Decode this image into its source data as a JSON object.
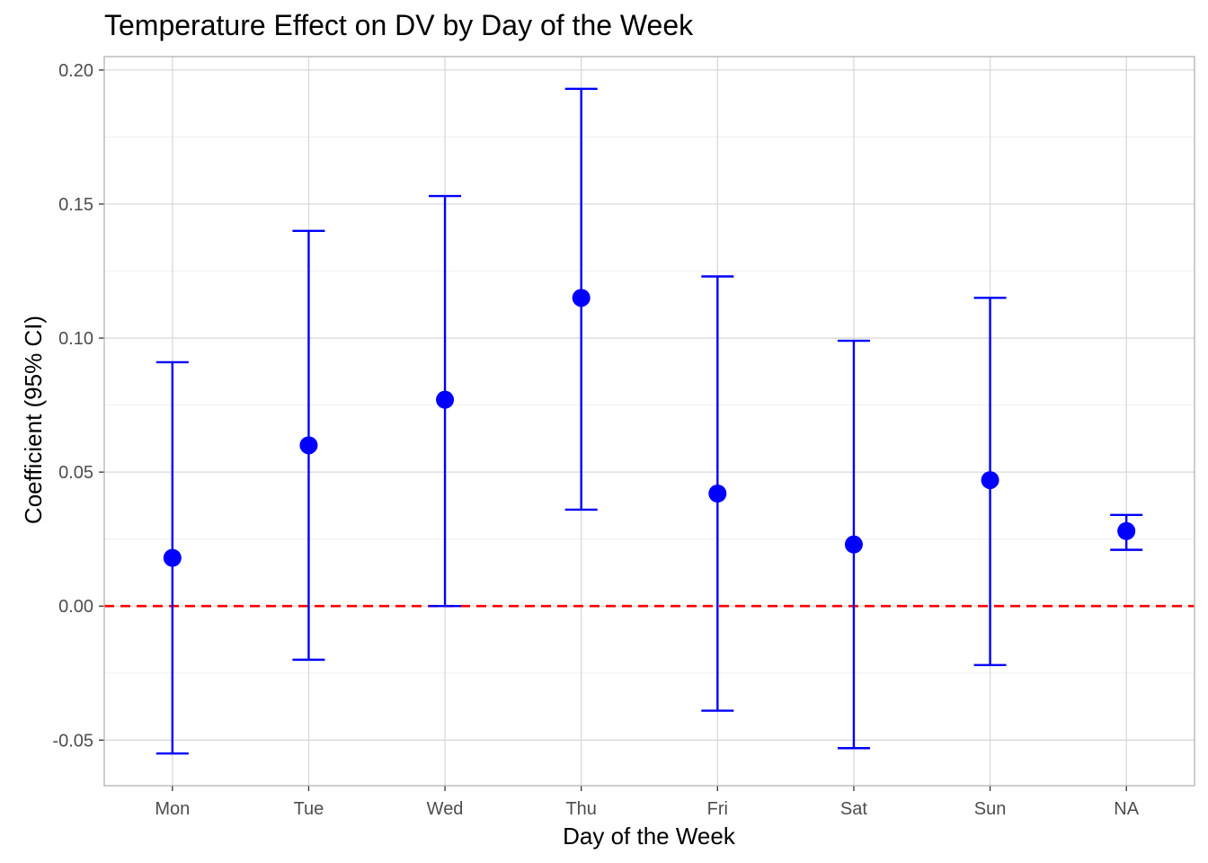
{
  "chart_data": {
    "type": "scatter",
    "title": "Temperature Effect on DV by Day of the Week",
    "xlabel": "Day of the Week",
    "ylabel": "Coefficient (95% CI)",
    "categories": [
      "Mon",
      "Tue",
      "Wed",
      "Thu",
      "Fri",
      "Sat",
      "Sun",
      "NA"
    ],
    "series": [
      {
        "values": [
          0.018,
          0.06,
          0.077,
          0.115,
          0.042,
          0.023,
          0.047,
          0.028
        ],
        "ci_lower": [
          -0.055,
          -0.02,
          0.0,
          0.036,
          -0.039,
          -0.053,
          -0.022,
          0.021
        ],
        "ci_upper": [
          0.091,
          0.14,
          0.153,
          0.193,
          0.123,
          0.099,
          0.115,
          0.034
        ]
      }
    ],
    "ylim": [
      -0.067,
      0.205
    ],
    "yticks": [
      -0.05,
      0.0,
      0.05,
      0.1,
      0.15,
      0.2
    ],
    "ytick_labels": [
      "-0.05",
      "0.00",
      "0.05",
      "0.10",
      "0.15",
      "0.20"
    ],
    "reference_line": {
      "y": 0.0,
      "style": "dashed"
    },
    "grid": true,
    "legend": "none",
    "colors": {
      "points": "#0000ff",
      "error_bars": "#0000ff",
      "reference_line": "#ff0000"
    }
  }
}
